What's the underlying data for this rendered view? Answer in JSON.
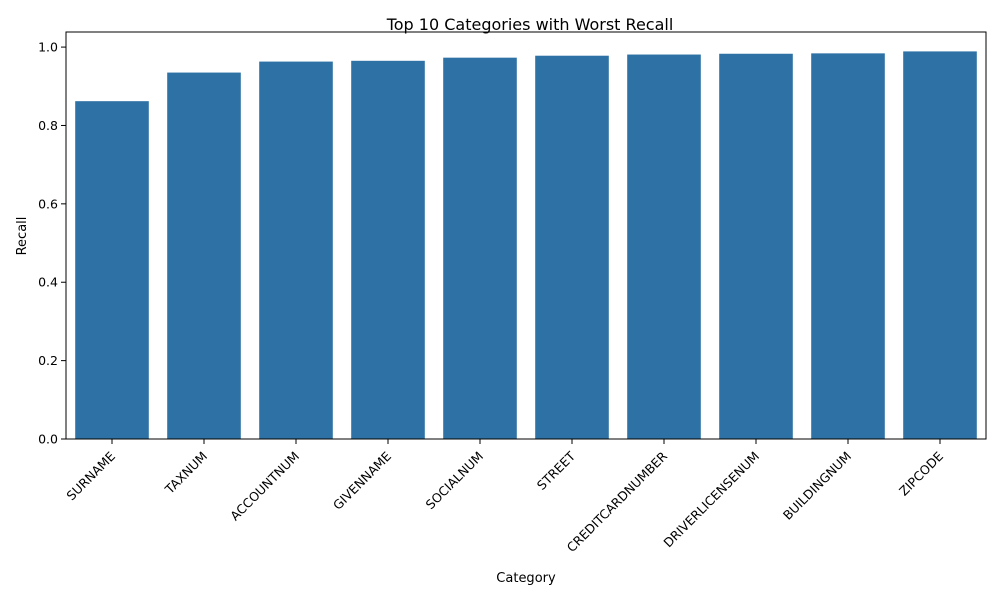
{
  "chart_data": {
    "type": "bar",
    "title": "Top 10 Categories with Worst Recall",
    "xlabel": "Category",
    "ylabel": "Recall",
    "categories": [
      "SURNAME",
      "TAXNUM",
      "ACCOUNTNUM",
      "GIVENNAME",
      "SOCIALNUM",
      "STREET",
      "CREDITCARDNUMBER",
      "DRIVERLICENSENUM",
      "BUILDINGNUM",
      "ZIPCODE"
    ],
    "values": [
      0.862,
      0.935,
      0.963,
      0.965,
      0.973,
      0.978,
      0.981,
      0.983,
      0.984,
      0.989
    ],
    "ylim": [
      0,
      1.0385
    ],
    "yticks": [
      "0.0",
      "0.2",
      "0.4",
      "0.6",
      "0.8",
      "1.0"
    ],
    "bar_color": "#2e72a5",
    "grid": false,
    "legend": "none"
  }
}
